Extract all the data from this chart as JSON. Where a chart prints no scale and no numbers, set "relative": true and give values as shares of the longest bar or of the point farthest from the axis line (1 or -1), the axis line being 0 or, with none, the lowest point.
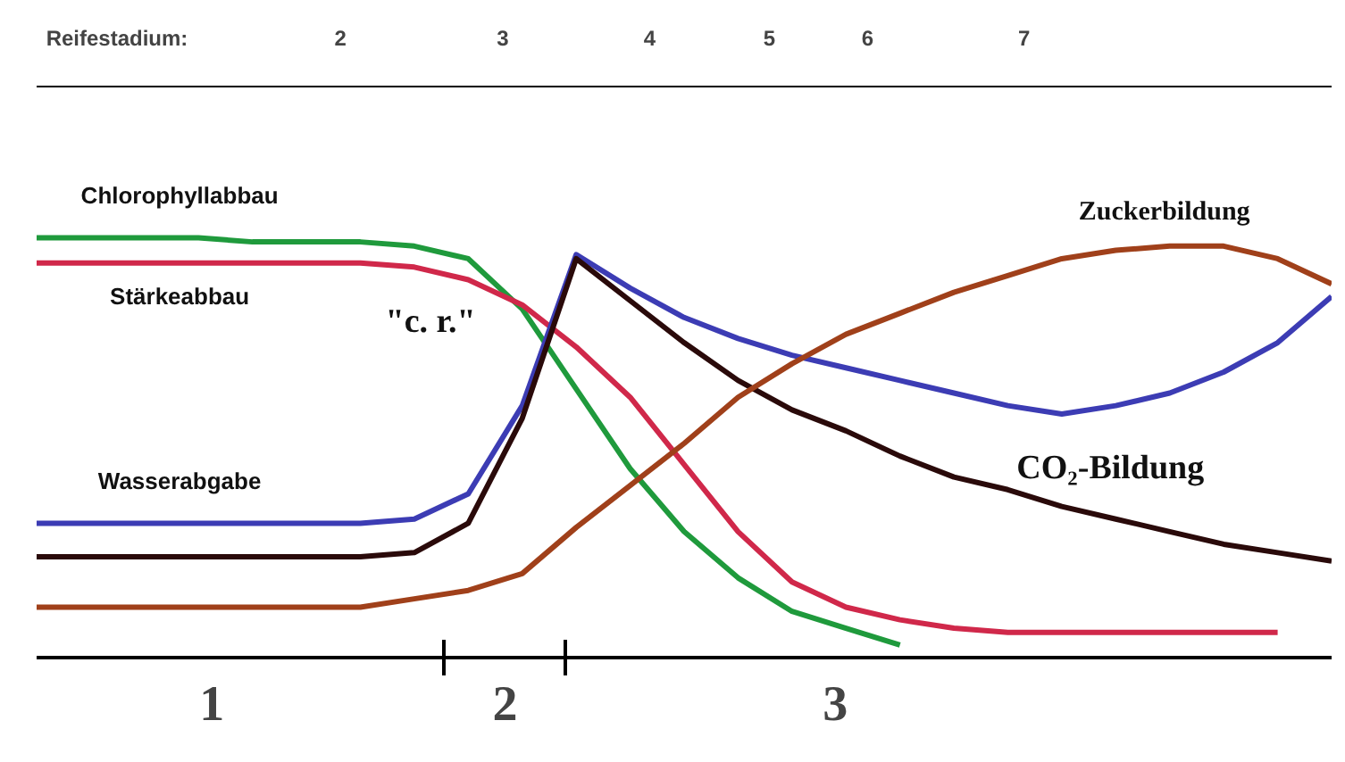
{
  "chart_data": {
    "type": "line",
    "relative": true,
    "categories": [
      null,
      null,
      null,
      null,
      null,
      null,
      null,
      null,
      null,
      null,
      null,
      null,
      null,
      null,
      null,
      null,
      null,
      null,
      null,
      null,
      null,
      null,
      null,
      null,
      null
    ],
    "series": [
      {
        "name": "Chlorophyllabbau",
        "color": "#1f9a3c",
        "values": [
          1.0,
          1.0,
          1.0,
          1.0,
          0.99,
          0.99,
          0.99,
          0.98,
          0.95,
          0.83,
          0.64,
          0.45,
          0.3,
          0.19,
          0.11,
          0.07,
          0.03,
          null,
          null,
          null,
          null,
          null,
          null,
          null,
          null
        ]
      },
      {
        "name": "Stärkeabbau",
        "color": "#d0284a",
        "values": [
          0.94,
          0.94,
          0.94,
          0.94,
          0.94,
          0.94,
          0.94,
          0.93,
          0.9,
          0.84,
          0.74,
          0.62,
          0.46,
          0.3,
          0.18,
          0.12,
          0.09,
          0.07,
          0.06,
          0.06,
          0.06,
          0.06,
          0.06,
          0.06,
          null
        ]
      },
      {
        "name": "Wasserabgabe",
        "color": "#3c3cb4",
        "values": [
          0.32,
          0.32,
          0.32,
          0.32,
          0.32,
          0.32,
          0.32,
          0.33,
          0.39,
          0.6,
          0.96,
          0.88,
          0.81,
          0.76,
          0.72,
          0.69,
          0.66,
          0.63,
          0.6,
          0.58,
          0.6,
          0.63,
          0.68,
          0.75,
          0.86
        ]
      },
      {
        "name": "CO₂-Bildung",
        "color": "#2a0a0a",
        "values": [
          0.24,
          0.24,
          0.24,
          0.24,
          0.24,
          0.24,
          0.24,
          0.25,
          0.32,
          0.57,
          0.95,
          0.85,
          0.75,
          0.66,
          0.59,
          0.54,
          0.48,
          0.43,
          0.4,
          0.36,
          0.33,
          0.3,
          0.27,
          0.25,
          0.23
        ]
      },
      {
        "name": "Zuckerbildung",
        "color": "#a0401a",
        "values": [
          0.12,
          0.12,
          0.12,
          0.12,
          0.12,
          0.12,
          0.12,
          0.14,
          0.16,
          0.2,
          0.31,
          0.41,
          0.51,
          0.62,
          0.7,
          0.77,
          0.82,
          0.87,
          0.91,
          0.95,
          0.97,
          0.98,
          0.98,
          0.95,
          0.89
        ]
      }
    ],
    "annotations": [
      "Reifestadium:",
      "2",
      "3",
      "4",
      "5",
      "6",
      "7",
      "1",
      "2",
      "3",
      "\"c. r.\""
    ]
  }
}
